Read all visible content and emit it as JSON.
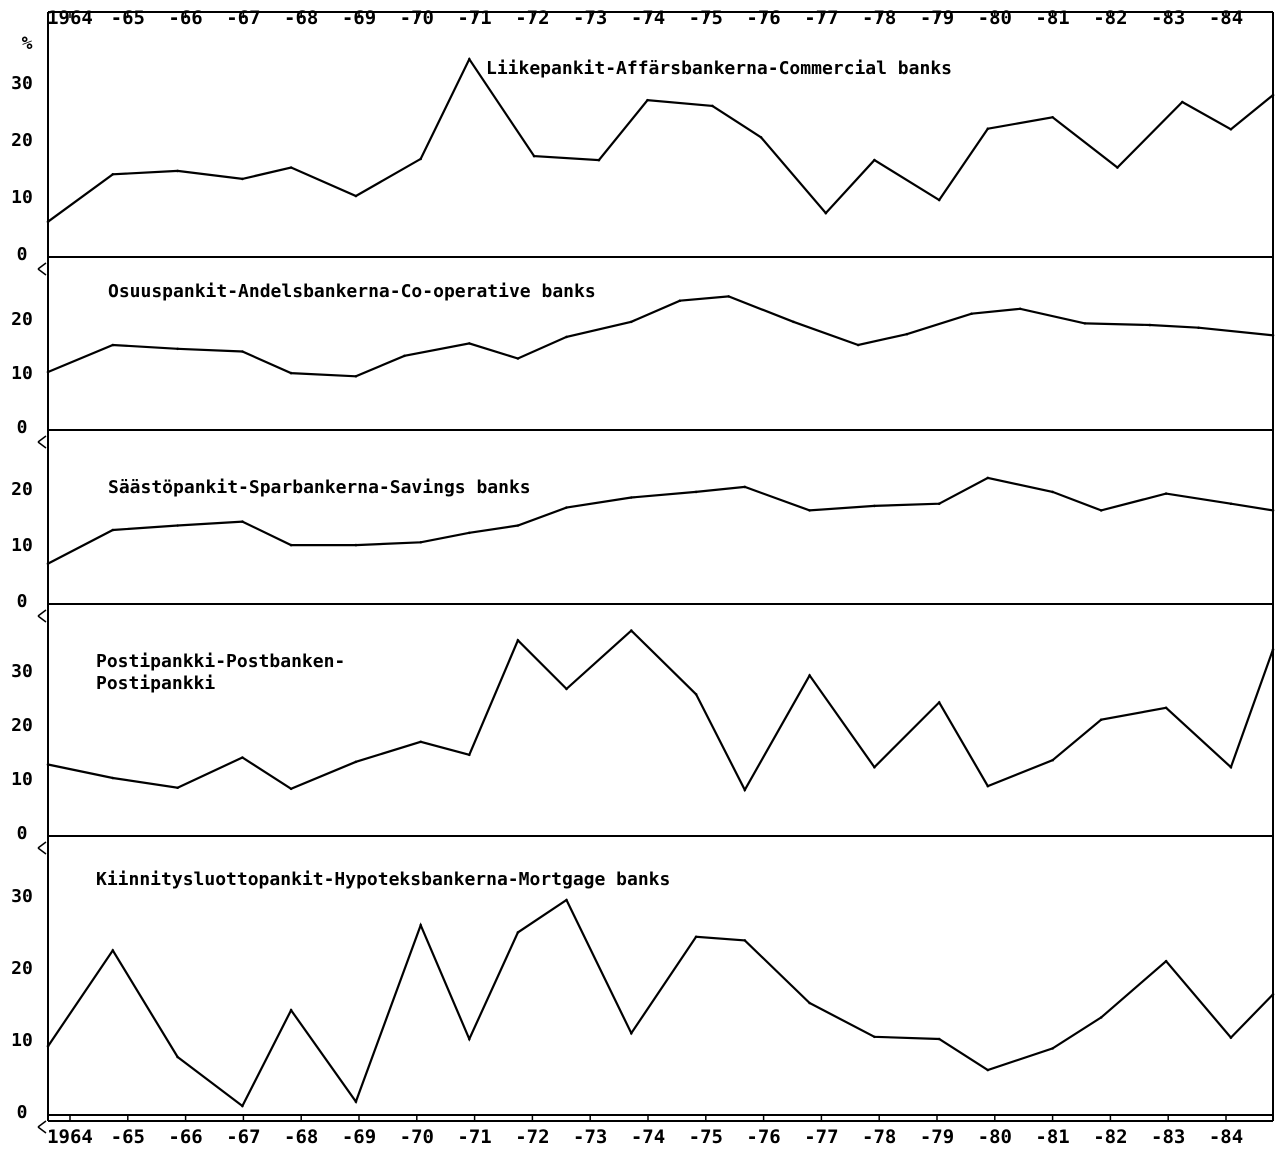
{
  "chart_data": {
    "type": "line",
    "y_unit_label": "%",
    "x_labels_top": [
      "1964",
      "-65",
      "-66",
      "-67",
      "-68",
      "-69",
      "-70",
      "-71",
      "-72",
      "-73",
      "-74",
      "-75",
      "-76",
      "-77",
      "-78",
      "-79",
      "-80",
      "-81",
      "-82",
      "-83",
      "-84"
    ],
    "x_labels_bottom": [
      "1964",
      "-65",
      "-66",
      "-67",
      "-68",
      "-69",
      "-70",
      "-71",
      "-72",
      "-73",
      "-74",
      "-75",
      "-76",
      "-77",
      "-78",
      "-79",
      "-80",
      "-81",
      "-82",
      "-83",
      "-84"
    ],
    "panels": [
      {
        "title_lines": [
          "Liikepankit-Affärsbankerna-Commercial banks"
        ],
        "yticks": [
          "0",
          "10",
          "20",
          "30"
        ],
        "ylim": [
          0,
          37
        ],
        "x": [
          1964.0,
          1965.0,
          1966.0,
          1967.0,
          1967.75,
          1968.75,
          1969.75,
          1970.5,
          1971.5,
          1972.5,
          1973.25,
          1974.25,
          1975.0,
          1976.0,
          1976.75,
          1977.75,
          1978.5,
          1979.5,
          1980.5,
          1981.5,
          1982.25,
          1982.9
        ],
        "y": [
          5.5,
          13.8,
          14.4,
          13.0,
          15.0,
          10.0,
          16.5,
          34.0,
          17.0,
          16.3,
          26.8,
          25.8,
          20.3,
          7.0,
          16.3,
          9.3,
          21.8,
          23.8,
          15.0,
          26.5,
          21.7,
          27.7
        ]
      },
      {
        "title_lines": [
          "Osuuspankit-Andelsbankerna-Co-operative banks"
        ],
        "yticks": [
          "0",
          "10",
          "20"
        ],
        "ylim": [
          0,
          28
        ],
        "x": [
          1964.0,
          1965.0,
          1966.0,
          1967.0,
          1967.75,
          1968.75,
          1969.5,
          1970.5,
          1971.25,
          1972.0,
          1973.0,
          1973.75,
          1974.5,
          1975.5,
          1976.5,
          1977.25,
          1978.25,
          1979.0,
          1980.0,
          1981.0,
          1981.75,
          1982.9
        ],
        "y": [
          10.0,
          15.0,
          14.3,
          13.8,
          9.8,
          9.2,
          13.0,
          15.3,
          12.5,
          16.5,
          19.3,
          23.2,
          24.0,
          19.3,
          15.0,
          17.0,
          20.8,
          21.7,
          19.0,
          18.7,
          18.2,
          16.8
        ]
      },
      {
        "title_lines": [
          "Säästöpankit-Sparbankerna-Savings banks"
        ],
        "yticks": [
          "0",
          "10",
          "20"
        ],
        "ylim": [
          0,
          28
        ],
        "x": [
          1964.0,
          1965.0,
          1966.0,
          1967.0,
          1967.75,
          1968.75,
          1969.75,
          1970.5,
          1971.25,
          1972.0,
          1973.0,
          1974.0,
          1974.75,
          1975.75,
          1976.75,
          1977.75,
          1978.5,
          1979.5,
          1980.25,
          1981.25,
          1982.25,
          1982.9
        ],
        "y": [
          6.5,
          12.5,
          13.3,
          14.0,
          9.8,
          9.8,
          10.3,
          12.0,
          13.3,
          16.5,
          18.3,
          19.3,
          20.2,
          16.0,
          16.8,
          17.2,
          21.8,
          19.3,
          16.0,
          19.0,
          17.2,
          16.0
        ]
      },
      {
        "title_lines": [
          "Postipankki-Postbanken-",
          "Postipankki"
        ],
        "yticks": [
          "0",
          "10",
          "20",
          "30"
        ],
        "ylim": [
          0,
          38
        ],
        "x": [
          1964.0,
          1965.0,
          1966.0,
          1967.0,
          1967.75,
          1968.75,
          1969.75,
          1970.5,
          1971.25,
          1972.0,
          1973.0,
          1974.0,
          1974.75,
          1975.75,
          1976.75,
          1977.75,
          1978.5,
          1979.5,
          1980.25,
          1981.25,
          1982.25,
          1982.9
        ],
        "y": [
          12.5,
          10.0,
          8.2,
          13.8,
          8.0,
          13.0,
          16.7,
          14.3,
          35.5,
          26.5,
          37.3,
          25.5,
          7.8,
          29.0,
          12.0,
          24.0,
          8.5,
          13.3,
          20.8,
          23.0,
          12.0,
          33.8
        ]
      },
      {
        "title_lines": [
          "Kiinnitysluottopankit-Hypoteksbankerna-Mortgage banks"
        ],
        "yticks": [
          "0",
          "10",
          "20",
          "30"
        ],
        "ylim": [
          0,
          42
        ],
        "x": [
          1964.0,
          1965.0,
          1966.0,
          1967.0,
          1967.75,
          1968.75,
          1969.75,
          1970.5,
          1971.25,
          1972.0,
          1973.0,
          1974.0,
          1974.75,
          1975.75,
          1976.75,
          1977.75,
          1978.5,
          1979.5,
          1980.25,
          1981.25,
          1982.25,
          1982.9
        ],
        "y": [
          9.0,
          22.3,
          7.5,
          0.7,
          14.0,
          1.3,
          25.8,
          10.0,
          24.8,
          29.3,
          10.8,
          24.2,
          23.7,
          15.0,
          10.3,
          10.0,
          5.7,
          8.7,
          13.0,
          20.8,
          10.2,
          16.2
        ]
      }
    ]
  }
}
